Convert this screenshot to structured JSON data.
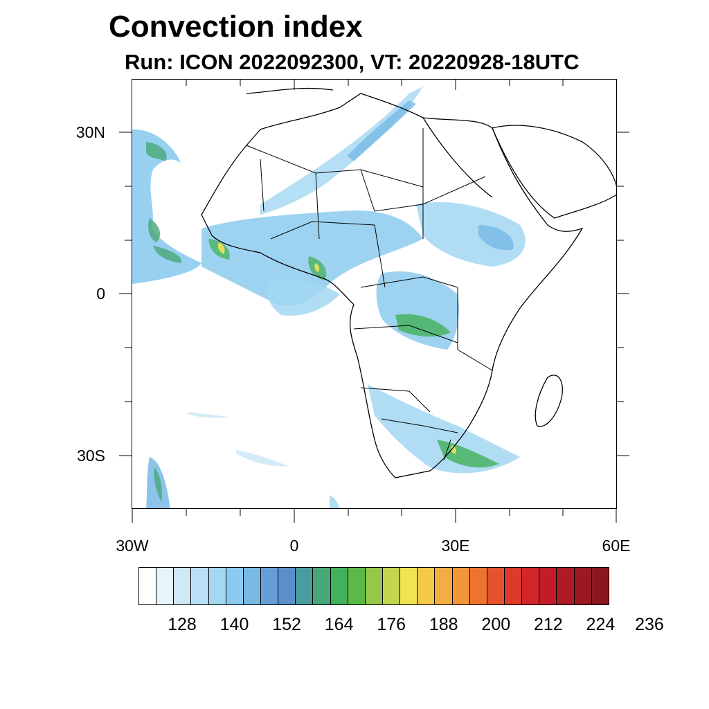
{
  "title": "Convection index",
  "subtitle": "Run: ICON 2022092300,  VT: 20220928-18UTC",
  "map": {
    "region": "Africa",
    "lon_range": [
      -30,
      60
    ],
    "lat_range": [
      -40,
      40
    ],
    "lat_ticks": [
      {
        "value": 30,
        "label": "30N"
      },
      {
        "value": 0,
        "label": "0"
      },
      {
        "value": -30,
        "label": "30S"
      }
    ],
    "lon_ticks": [
      {
        "value": -30,
        "label": "30W"
      },
      {
        "value": 0,
        "label": "0"
      },
      {
        "value": 30,
        "label": "30E"
      },
      {
        "value": 60,
        "label": "60E"
      }
    ],
    "field": "convection index",
    "coastline_color": "#000000"
  },
  "colorbar": {
    "colors": [
      "#ffffff",
      "#e8f4fb",
      "#cfe9f7",
      "#b9e0f5",
      "#a3d7f2",
      "#8ccbef",
      "#78b9e6",
      "#669fd8",
      "#5a8fca",
      "#4b9c9e",
      "#49a777",
      "#44b059",
      "#5cb947",
      "#95c748",
      "#c4d54e",
      "#efe552",
      "#f7c948",
      "#f4ad43",
      "#f39539",
      "#ee7330",
      "#e5532c",
      "#dd3a2a",
      "#d2262a",
      "#c21c28",
      "#b01a25",
      "#9c1822",
      "#8a171f"
    ],
    "labels": [
      "128",
      "140",
      "152",
      "164",
      "176",
      "188",
      "200",
      "212",
      "224",
      "236"
    ]
  }
}
